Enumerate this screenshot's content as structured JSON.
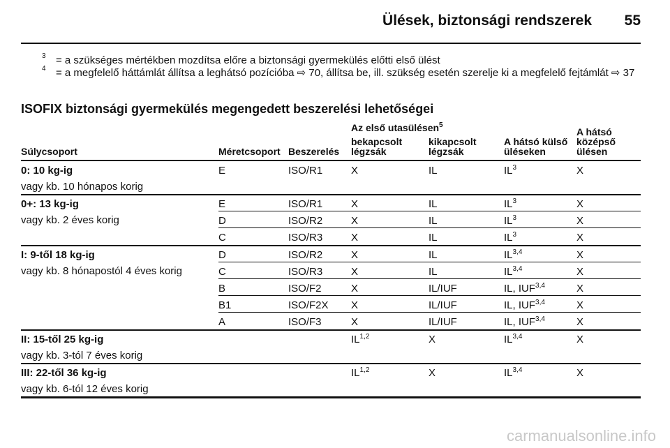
{
  "header": {
    "title": "Ülések, biztonsági rendszerek",
    "page": "55"
  },
  "footnotes": [
    {
      "mark": "3",
      "text": "= a szükséges mértékben mozdítsa előre a biztonsági gyermekülés előtti első ülést"
    },
    {
      "mark": "4",
      "text": "= a megfelelő háttámlát állítsa a leghátsó pozícióba ⇨ 70, állítsa be, ill. szükség esetén szerelje ki a megfelelő fejtámlát ⇨ 37"
    }
  ],
  "section_title": "ISOFIX biztonsági gyermekülés megengedett beszerelési lehetőségei",
  "table": {
    "group_header": {
      "text": "Az első utasülésen",
      "sup": "5"
    },
    "columns": [
      "Súlycsoport",
      "Méretcsoport",
      "Beszerelés",
      "bekapcsolt\nlégzsák",
      "kikapcsolt\nlégzsák",
      "A hátsó külső\nüléseken",
      "A hátsó\nközépső\nülésen"
    ],
    "groups": [
      {
        "label": "0: 10 kg-ig",
        "sub": "vagy kb. 10 hónapos korig",
        "rows": [
          {
            "size": "E",
            "mount": "ISO/R1",
            "values": [
              "X",
              "IL",
              {
                "text": "IL",
                "sup": "3"
              },
              "X"
            ]
          }
        ]
      },
      {
        "label": "0+: 13 kg-ig",
        "sub": "vagy kb. 2 éves korig",
        "rows": [
          {
            "size": "E",
            "mount": "ISO/R1",
            "values": [
              "X",
              "IL",
              {
                "text": "IL",
                "sup": "3"
              },
              "X"
            ]
          },
          {
            "size": "D",
            "mount": "ISO/R2",
            "values": [
              "X",
              "IL",
              {
                "text": "IL",
                "sup": "3"
              },
              "X"
            ]
          },
          {
            "size": "C",
            "mount": "ISO/R3",
            "values": [
              "X",
              "IL",
              {
                "text": "IL",
                "sup": "3"
              },
              "X"
            ]
          }
        ]
      },
      {
        "label": "I: 9-től 18 kg-ig",
        "sub": "vagy kb. 8 hónapostól 4 éves korig",
        "rows": [
          {
            "size": "D",
            "mount": "ISO/R2",
            "values": [
              "X",
              "IL",
              {
                "text": "IL",
                "sup": "3,4"
              },
              "X"
            ]
          },
          {
            "size": "C",
            "mount": "ISO/R3",
            "values": [
              "X",
              "IL",
              {
                "text": "IL",
                "sup": "3,4"
              },
              "X"
            ]
          },
          {
            "size": "B",
            "mount": "ISO/F2",
            "values": [
              "X",
              "IL/IUF",
              {
                "text": "IL, IUF",
                "sup": "3,4"
              },
              "X"
            ]
          },
          {
            "size": "B1",
            "mount": "ISO/F2X",
            "values": [
              "X",
              "IL/IUF",
              {
                "text": "IL, IUF",
                "sup": "3,4"
              },
              "X"
            ]
          },
          {
            "size": "A",
            "mount": "ISO/F3",
            "values": [
              "X",
              "IL/IUF",
              {
                "text": "IL, IUF",
                "sup": "3,4"
              },
              "X"
            ]
          }
        ]
      },
      {
        "label": "II: 15-től 25 kg-ig",
        "sub": "vagy kb. 3-tól 7 éves korig",
        "rows": [
          {
            "values": [
              {
                "text": "IL",
                "sup": "1,2"
              },
              "X",
              {
                "text": "IL",
                "sup": "3,4"
              },
              "X"
            ]
          }
        ]
      },
      {
        "label": "III: 22-től 36 kg-ig",
        "sub": "vagy kb. 6-tól 12 éves korig",
        "rows": [
          {
            "values": [
              {
                "text": "IL",
                "sup": "1,2"
              },
              "X",
              {
                "text": "IL",
                "sup": "3,4"
              },
              "X"
            ]
          }
        ]
      }
    ]
  },
  "watermark": "carmanualsonline.info"
}
